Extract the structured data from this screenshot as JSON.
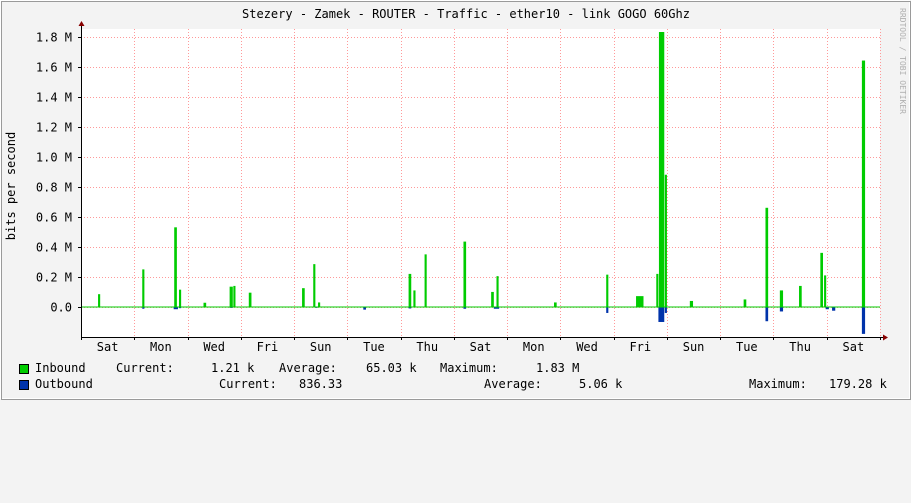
{
  "chart_data": {
    "type": "area",
    "title": "Stezery - Zamek - ROUTER - Traffic - ether10 - link GOGO 60Ghz",
    "ylabel": "bits per second",
    "watermark": "RRDTOOL / TOBI OETIKER",
    "ylim": [
      -200000,
      1850000
    ],
    "yticks": [
      {
        "value": 0,
        "label": "0.0"
      },
      {
        "value": 200000,
        "label": "0.2 M"
      },
      {
        "value": 400000,
        "label": "0.4 M"
      },
      {
        "value": 600000,
        "label": "0.6 M"
      },
      {
        "value": 800000,
        "label": "0.8 M"
      },
      {
        "value": 1000000,
        "label": "1.0 M"
      },
      {
        "value": 1200000,
        "label": "1.2 M"
      },
      {
        "value": 1400000,
        "label": "1.4 M"
      },
      {
        "value": 1600000,
        "label": "1.6 M"
      },
      {
        "value": 1800000,
        "label": "1.8 M"
      }
    ],
    "xlim": [
      0,
      15.0
    ],
    "xticks": [
      {
        "value": 0.5,
        "label": "Sat"
      },
      {
        "value": 1.5,
        "label": "Mon"
      },
      {
        "value": 2.5,
        "label": "Wed"
      },
      {
        "value": 3.5,
        "label": "Fri"
      },
      {
        "value": 4.5,
        "label": "Sun"
      },
      {
        "value": 5.5,
        "label": "Tue"
      },
      {
        "value": 6.5,
        "label": "Thu"
      },
      {
        "value": 7.5,
        "label": "Sat"
      },
      {
        "value": 8.5,
        "label": "Mon"
      },
      {
        "value": 9.5,
        "label": "Wed"
      },
      {
        "value": 10.5,
        "label": "Fri"
      },
      {
        "value": 11.5,
        "label": "Sun"
      },
      {
        "value": 12.5,
        "label": "Tue"
      },
      {
        "value": 13.5,
        "label": "Thu"
      },
      {
        "value": 14.5,
        "label": "Sat"
      }
    ],
    "grid": true,
    "colors": {
      "inbound": "#00cc00",
      "outbound": "#0033aa",
      "grid": "#ff9999",
      "axis": "#000000",
      "plot_bg": "#ffffff",
      "canvas_bg": "#f3f3f3",
      "arrow": "#880000"
    },
    "series": [
      {
        "name": "Inbound",
        "values": [
          [
            0.32,
            0.36,
            85000
          ],
          [
            1.15,
            1.19,
            250000
          ],
          [
            1.75,
            1.8,
            530000
          ],
          [
            1.84,
            1.88,
            115000
          ],
          [
            2.3,
            2.35,
            28000
          ],
          [
            2.79,
            2.85,
            135000
          ],
          [
            2.86,
            2.9,
            140000
          ],
          [
            3.15,
            3.2,
            95000
          ],
          [
            4.15,
            4.2,
            125000
          ],
          [
            4.36,
            4.4,
            285000
          ],
          [
            4.45,
            4.49,
            30000
          ],
          [
            6.15,
            6.2,
            220000
          ],
          [
            6.24,
            6.28,
            110000
          ],
          [
            6.45,
            6.49,
            350000
          ],
          [
            7.18,
            7.23,
            435000
          ],
          [
            7.7,
            7.75,
            100000
          ],
          [
            7.8,
            7.84,
            205000
          ],
          [
            8.88,
            8.93,
            30000
          ],
          [
            9.86,
            9.9,
            215000
          ],
          [
            10.42,
            10.56,
            72000
          ],
          [
            10.8,
            10.84,
            220000
          ],
          [
            10.85,
            10.95,
            1830000
          ],
          [
            10.96,
            11.0,
            880000
          ],
          [
            11.43,
            11.49,
            40000
          ],
          [
            12.44,
            12.49,
            50000
          ],
          [
            12.85,
            12.9,
            660000
          ],
          [
            13.12,
            13.18,
            110000
          ],
          [
            13.48,
            13.53,
            140000
          ],
          [
            13.88,
            13.93,
            360000
          ],
          [
            13.95,
            13.99,
            210000
          ],
          [
            14.66,
            14.72,
            1640000
          ]
        ]
      },
      {
        "name": "Outbound",
        "values": [
          [
            1.15,
            1.19,
            12000
          ],
          [
            1.74,
            1.82,
            15000
          ],
          [
            1.84,
            1.88,
            8000
          ],
          [
            2.79,
            2.85,
            6000
          ],
          [
            4.4,
            4.44,
            6000
          ],
          [
            5.3,
            5.35,
            18000
          ],
          [
            6.15,
            6.2,
            10000
          ],
          [
            7.18,
            7.23,
            12000
          ],
          [
            7.75,
            7.85,
            12000
          ],
          [
            9.86,
            9.9,
            40000
          ],
          [
            10.84,
            10.95,
            100000
          ],
          [
            10.96,
            11.0,
            40000
          ],
          [
            12.85,
            12.9,
            95000
          ],
          [
            13.12,
            13.18,
            30000
          ],
          [
            13.98,
            14.04,
            15000
          ],
          [
            14.1,
            14.16,
            25000
          ],
          [
            14.66,
            14.72,
            179280
          ]
        ]
      }
    ]
  },
  "legend": {
    "inbound": {
      "label": "Inbound",
      "current_label": "Current:",
      "current": "1.21 k",
      "average_label": "Average:",
      "average": "65.03 k",
      "maximum_label": "Maximum:",
      "maximum": "1.83 M"
    },
    "outbound": {
      "label": "Outbound",
      "current_label": "Current:",
      "current": "836.33",
      "average_label": "Average:",
      "average": "5.06 k",
      "maximum_label": "Maximum:",
      "maximum": "179.28 k"
    }
  }
}
